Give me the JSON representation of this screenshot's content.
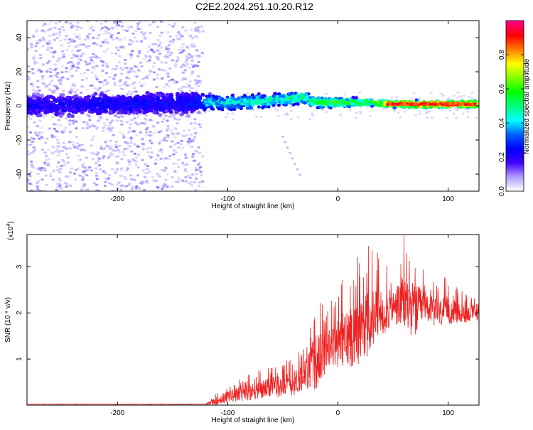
{
  "title": "C2E2.2024.251.10.20.R12",
  "chart_data": [
    {
      "type": "scatter",
      "title": "C2E2.2024.251.10.20.R12",
      "xlabel": "Height of straight line (km)",
      "ylabel": "Frequency (Hz)",
      "xlim": [
        -282,
        128
      ],
      "ylim": [
        -50,
        50
      ],
      "xticks": [
        -200,
        -100,
        0,
        100
      ],
      "yticks": [
        -40,
        -20,
        0,
        20,
        40
      ],
      "grid": false,
      "colorbar": {
        "label": "Normalized spectral amplitude",
        "range": [
          0,
          1
        ],
        "ticks": [
          0.0,
          0.2,
          0.4,
          0.6,
          0.8
        ],
        "colors": [
          "#ffffff",
          "#b09cff",
          "#4000ff",
          "#0000ff",
          "#0060ff",
          "#00ffff",
          "#00ff80",
          "#00ff00",
          "#80ff00",
          "#ffff00",
          "#ff8000",
          "#ff0000",
          "#ff0080"
        ]
      },
      "band": [
        {
          "x": -282,
          "center": 0,
          "halfwidth": 6,
          "amplitude": 0.22
        },
        {
          "x": -200,
          "center": 1,
          "halfwidth": 6,
          "amplitude": 0.24
        },
        {
          "x": -130,
          "center": 2,
          "halfwidth": 6,
          "amplitude": 0.26
        },
        {
          "x": -120,
          "center": 2,
          "halfwidth": 4,
          "amplitude": 0.4
        },
        {
          "x": -80,
          "center": 2,
          "halfwidth": 4,
          "amplitude": 0.45
        },
        {
          "x": -30,
          "center": 5,
          "halfwidth": 3,
          "amplitude": 0.5
        },
        {
          "x": -20,
          "center": 2,
          "halfwidth": 3,
          "amplitude": 0.55
        },
        {
          "x": 30,
          "center": 2,
          "halfwidth": 2,
          "amplitude": 0.6
        },
        {
          "x": 50,
          "center": 1,
          "halfwidth": 2,
          "amplitude": 0.85
        },
        {
          "x": 100,
          "center": 1,
          "halfwidth": 2,
          "amplitude": 0.9
        },
        {
          "x": 128,
          "center": 1,
          "halfwidth": 2,
          "amplitude": 0.75
        }
      ]
    },
    {
      "type": "line",
      "xlabel": "Height of straight line (km)",
      "ylabel": "SNR (10 * v/v)",
      "yscale_label": "(x10^4)",
      "yscale_base": "(x10",
      "yscale_exp": "4",
      "yscale_close": ")",
      "xlim": [
        -282,
        128
      ],
      "ylim": [
        0,
        3.7
      ],
      "xticks": [
        -200,
        -100,
        0,
        100
      ],
      "yticks": [
        1,
        2,
        3
      ],
      "color": "#ee2222",
      "grid": false,
      "series": [
        {
          "x": [
            -282,
            -200,
            -120,
            -110,
            -100,
            -80,
            -60,
            -40,
            -30,
            -20,
            -10,
            0,
            10,
            20,
            30,
            40,
            50,
            60,
            70,
            80,
            90,
            100,
            110,
            120,
            128
          ],
          "y": [
            0.0,
            0.0,
            0.01,
            0.1,
            0.2,
            0.3,
            0.4,
            0.5,
            0.7,
            1.0,
            1.2,
            1.4,
            1.55,
            1.7,
            1.9,
            2.05,
            2.15,
            2.3,
            2.1,
            2.2,
            2.0,
            2.1,
            2.0,
            2.0,
            2.05
          ],
          "envelope_max": [
            0.0,
            0.02,
            0.05,
            0.3,
            0.5,
            0.7,
            0.9,
            1.1,
            1.4,
            2.4,
            2.1,
            2.6,
            3.1,
            3.3,
            3.5,
            3.2,
            3.0,
            3.7,
            3.4,
            2.9,
            2.7,
            2.8,
            2.5,
            2.4,
            2.5
          ]
        }
      ]
    }
  ]
}
